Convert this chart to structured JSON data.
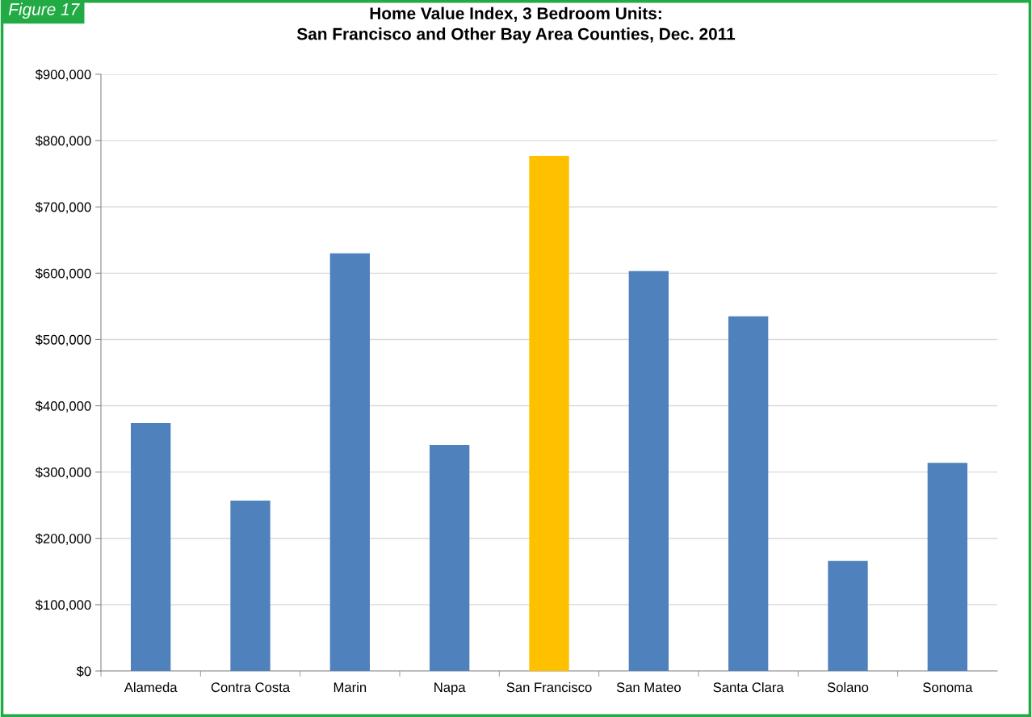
{
  "chart_data": {
    "type": "bar",
    "title": "Home Value Index, 3 Bedroom Units:\nSan Francisco and Other Bay Area Counties, Dec. 2011",
    "categories": [
      "Alameda",
      "Contra Costa",
      "Marin",
      "Napa",
      "San Francisco",
      "San Mateo",
      "Santa Clara",
      "Solano",
      "Sonoma"
    ],
    "values": [
      374000,
      257000,
      630000,
      341000,
      777000,
      603000,
      535000,
      166000,
      314000
    ],
    "colors": [
      "#4f81bd",
      "#4f81bd",
      "#4f81bd",
      "#4f81bd",
      "#ffc000",
      "#4f81bd",
      "#4f81bd",
      "#4f81bd",
      "#4f81bd"
    ],
    "ylim": [
      0,
      900000
    ],
    "yticks": [
      {
        "value": 0,
        "label": "$0"
      },
      {
        "value": 100000,
        "label": "$100,000"
      },
      {
        "value": 200000,
        "label": "$200,000"
      },
      {
        "value": 300000,
        "label": "$300,000"
      },
      {
        "value": 400000,
        "label": "$400,000"
      },
      {
        "value": 500000,
        "label": "$500,000"
      },
      {
        "value": 600000,
        "label": "$600,000"
      },
      {
        "value": 700000,
        "label": "$700,000"
      },
      {
        "value": 800000,
        "label": "$800,000"
      },
      {
        "value": 900000,
        "label": "$900,000"
      }
    ],
    "grid": "y",
    "legend": false,
    "annotations": [
      "Figure 17"
    ]
  }
}
